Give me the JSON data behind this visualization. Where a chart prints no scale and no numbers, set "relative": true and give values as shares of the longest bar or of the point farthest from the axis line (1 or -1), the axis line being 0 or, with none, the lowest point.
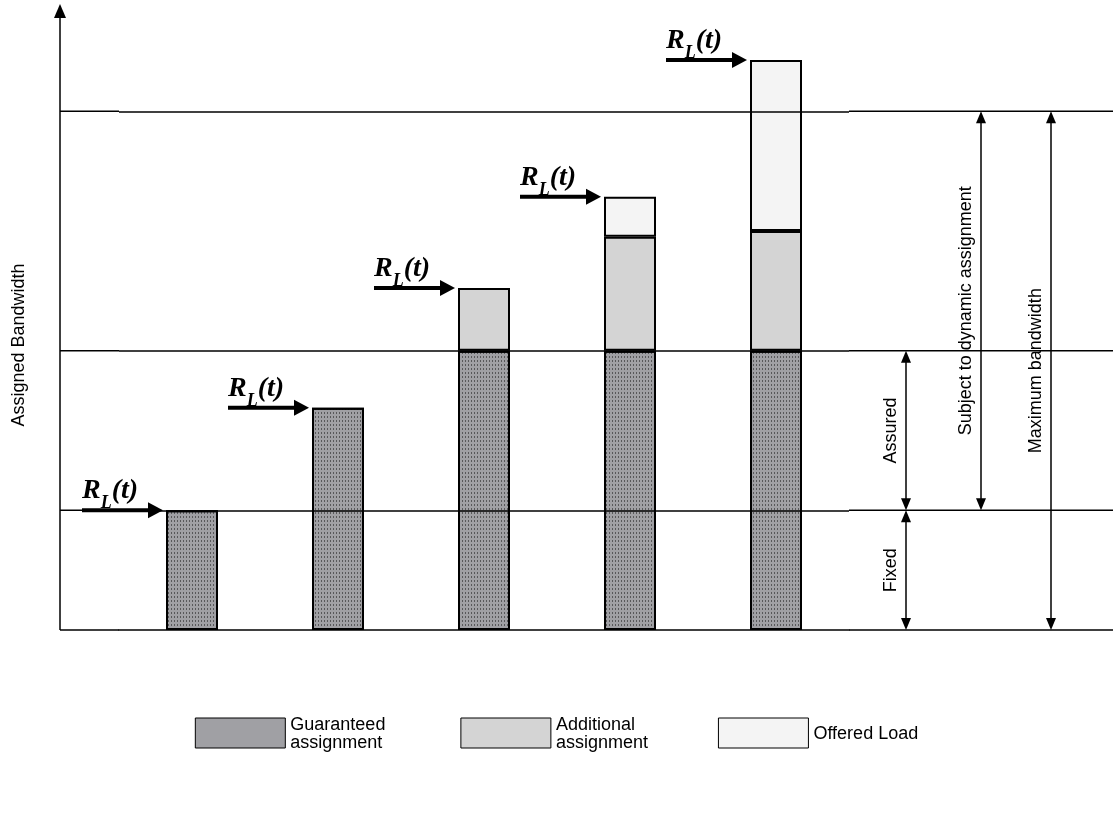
{
  "chart_data": {
    "type": "bar",
    "stacked": true,
    "relative": true,
    "categories": [
      null,
      null,
      null,
      null,
      null
    ],
    "series": [
      {
        "name": "Guaranteed assignment",
        "color": "#a0a0a4",
        "values": [
          0.21,
          0.39,
          0.49,
          0.49,
          0.49
        ]
      },
      {
        "name": "Additional assignment",
        "color": "#d4d4d4",
        "values": [
          null,
          null,
          0.11,
          0.2,
          0.21
        ]
      },
      {
        "name": "Offered Load",
        "color": "#f4f4f4",
        "values": [
          null,
          null,
          null,
          0.07,
          0.3
        ]
      }
    ],
    "ref_lines": [
      {
        "axis": "y",
        "value": 0.21
      },
      {
        "axis": "y",
        "value": 0.49
      },
      {
        "axis": "y",
        "value": 0.91
      }
    ],
    "annotations": [
      "R$_{L}$(t)",
      "R$_{L}$(t)",
      "R$_{L}$(t)",
      "R$_{L}$(t)",
      "R$_{L}$(t)",
      "Fixed",
      "Assured",
      "Subject to dynamic assignment",
      "Maximum bandwidth",
      "Assigned Bandwidth"
    ],
    "legend": "bottom"
  }
}
